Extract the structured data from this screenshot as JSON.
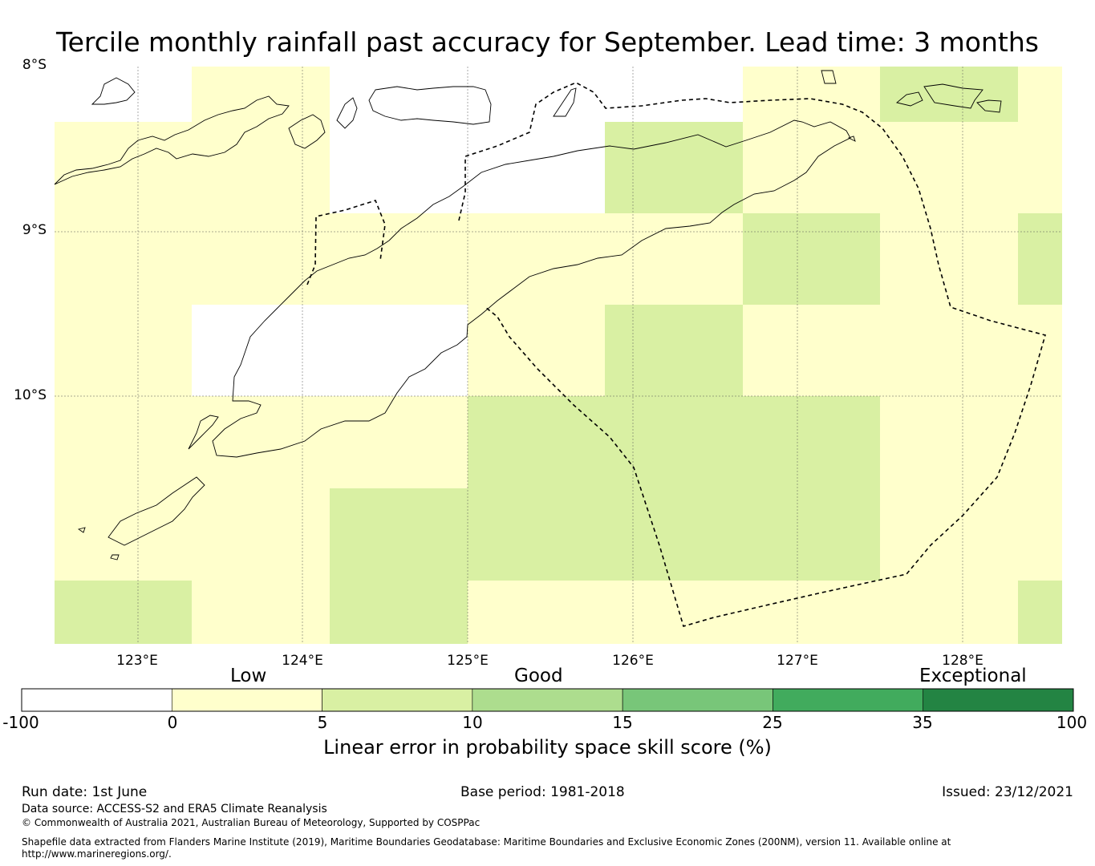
{
  "title": "Tercile monthly rainfall past accuracy for September. Lead time: 3 months",
  "map": {
    "lat_labels": [
      "8°S",
      "9°S",
      "10°S"
    ],
    "lon_labels": [
      "123°E",
      "124°E",
      "125°E",
      "126°E",
      "127°E",
      "128°E"
    ],
    "lon_range": [
      122.5,
      128.6
    ],
    "lat_range": [
      -11.5,
      -8.0
    ],
    "legend_classes": {
      "white": "#ffffff",
      "low": "#ffffcc",
      "good": "#d9f0a3"
    }
  },
  "colorbar": {
    "categories": [
      "Low",
      "Good",
      "Exceptional"
    ],
    "ticks": [
      "-100",
      "0",
      "5",
      "10",
      "15",
      "25",
      "35",
      "100"
    ],
    "colors": [
      "#ffffff",
      "#ffffcc",
      "#d9f0a3",
      "#addd8e",
      "#78c679",
      "#41ab5d",
      "#238443"
    ],
    "label": "Linear error in probability space skill score (%)"
  },
  "footer": {
    "run_date": "Run date: 1st June",
    "base_period": "Base period: 1981-2018",
    "issued": "Issued: 23/12/2021",
    "data_source": "Data source: ACCESS-S2 and ERA5 Climate Reanalysis",
    "copyright": "© Commonwealth of Australia 2021, Australian Bureau of Meteorology, Supported by COSPPac",
    "shapefile_1": "Shapefile data extracted from Flanders Marine Institute (2019), Maritime Boundaries Geodatabase: Maritime Boundaries and Exclusive Economic Zones (200NM), version 11. Available online at",
    "shapefile_2": "http://www.marineregions.org/."
  }
}
